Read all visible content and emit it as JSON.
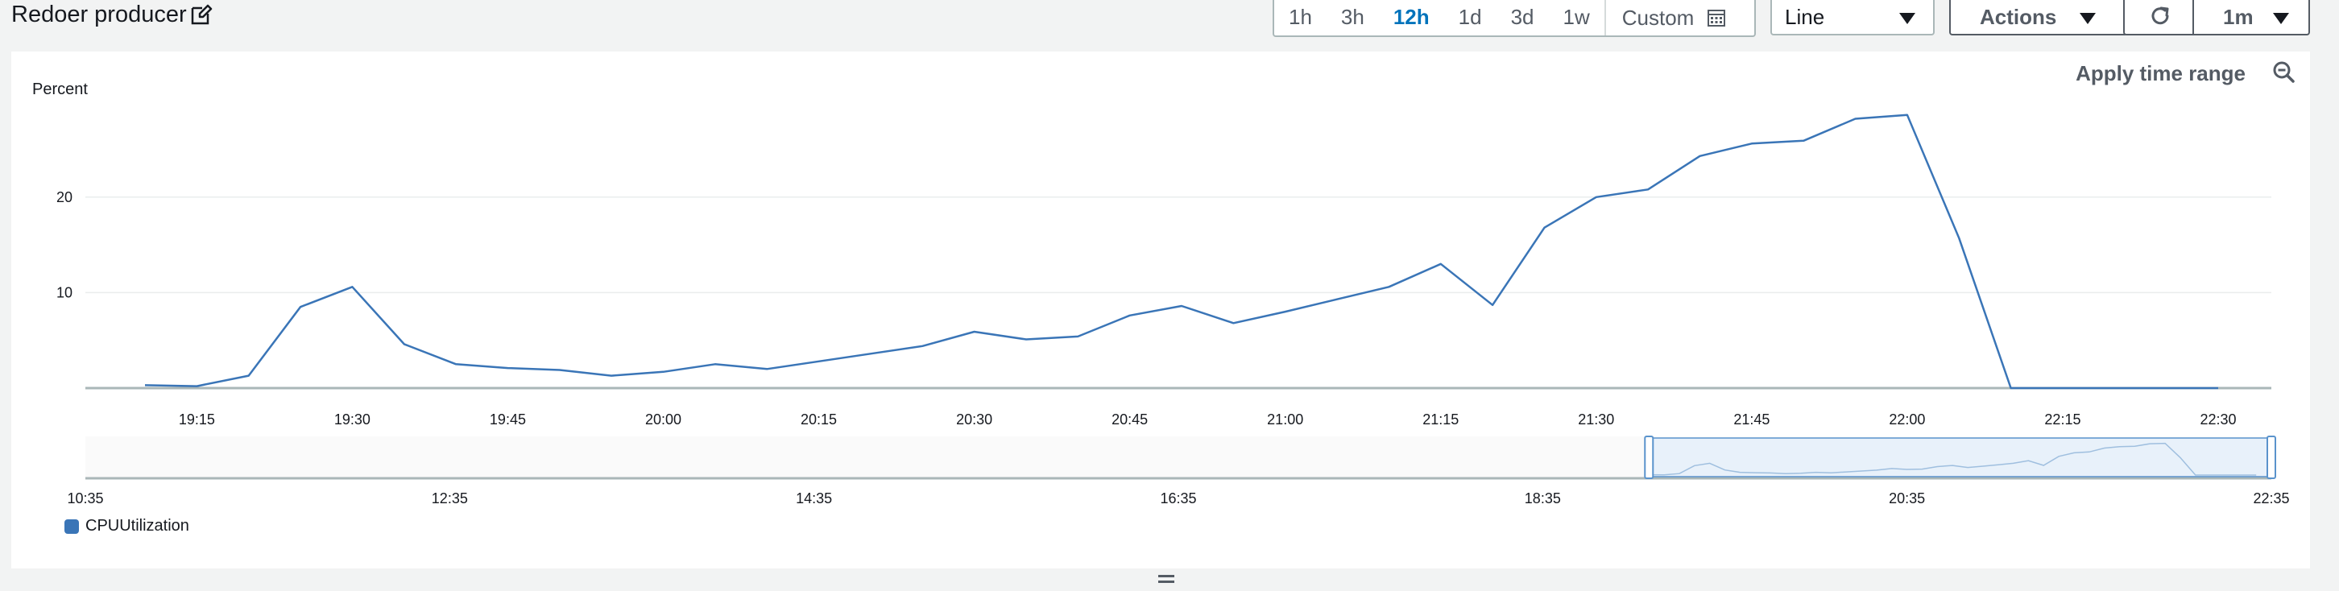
{
  "widget": {
    "title": "Redoer producer"
  },
  "toolbar": {
    "ranges": [
      "1h",
      "3h",
      "12h",
      "1d",
      "3d",
      "1w"
    ],
    "active_range": "12h",
    "custom_label": "Custom",
    "chart_type": "Line",
    "actions_label": "Actions",
    "refresh_interval": "1m"
  },
  "panel": {
    "apply_time_range": "Apply time range",
    "y_axis_label": "Percent"
  },
  "legend": {
    "label": "CPUUtilization",
    "color": "#3a75b7"
  },
  "chart_data": {
    "type": "line",
    "title": "Redoer producer",
    "ylabel": "Percent",
    "xlabel": "",
    "ylim": [
      0,
      29
    ],
    "y_ticks": [
      10,
      20
    ],
    "x_ticks": [
      "19:15",
      "19:30",
      "19:45",
      "20:00",
      "20:15",
      "20:30",
      "20:45",
      "21:00",
      "21:15",
      "21:30",
      "21:45",
      "22:00",
      "22:15",
      "22:30"
    ],
    "series": [
      {
        "name": "CPUUtilization",
        "color": "#3a75b7",
        "x": [
          "19:10",
          "19:15",
          "19:20",
          "19:25",
          "19:30",
          "19:35",
          "19:40",
          "19:45",
          "19:50",
          "19:55",
          "20:00",
          "20:05",
          "20:10",
          "20:15",
          "20:20",
          "20:25",
          "20:30",
          "20:35",
          "20:40",
          "20:45",
          "20:50",
          "20:55",
          "21:00",
          "21:05",
          "21:10",
          "21:15",
          "21:20",
          "21:25",
          "21:30",
          "21:35",
          "21:40",
          "21:45",
          "21:50",
          "21:55",
          "22:00",
          "22:05",
          "22:10",
          "22:15",
          "22:20",
          "22:25",
          "22:30"
        ],
        "values": [
          0.3,
          0.2,
          1.3,
          8.5,
          10.6,
          4.6,
          2.5,
          2.1,
          1.9,
          1.3,
          1.7,
          2.5,
          2.0,
          2.8,
          3.6,
          4.4,
          5.9,
          5.1,
          5.4,
          7.6,
          8.6,
          6.8,
          8.0,
          9.3,
          10.6,
          13.0,
          8.7,
          16.8,
          20.0,
          20.8,
          24.3,
          25.6,
          25.9,
          28.2,
          28.6,
          15.7,
          0.0,
          0.0,
          0.0,
          0.0,
          0.0
        ]
      }
    ],
    "navigator": {
      "x_ticks": [
        "10:35",
        "12:35",
        "14:35",
        "16:35",
        "18:35",
        "20:35",
        "22:35"
      ],
      "selection": [
        "19:10",
        "22:35"
      ]
    }
  }
}
